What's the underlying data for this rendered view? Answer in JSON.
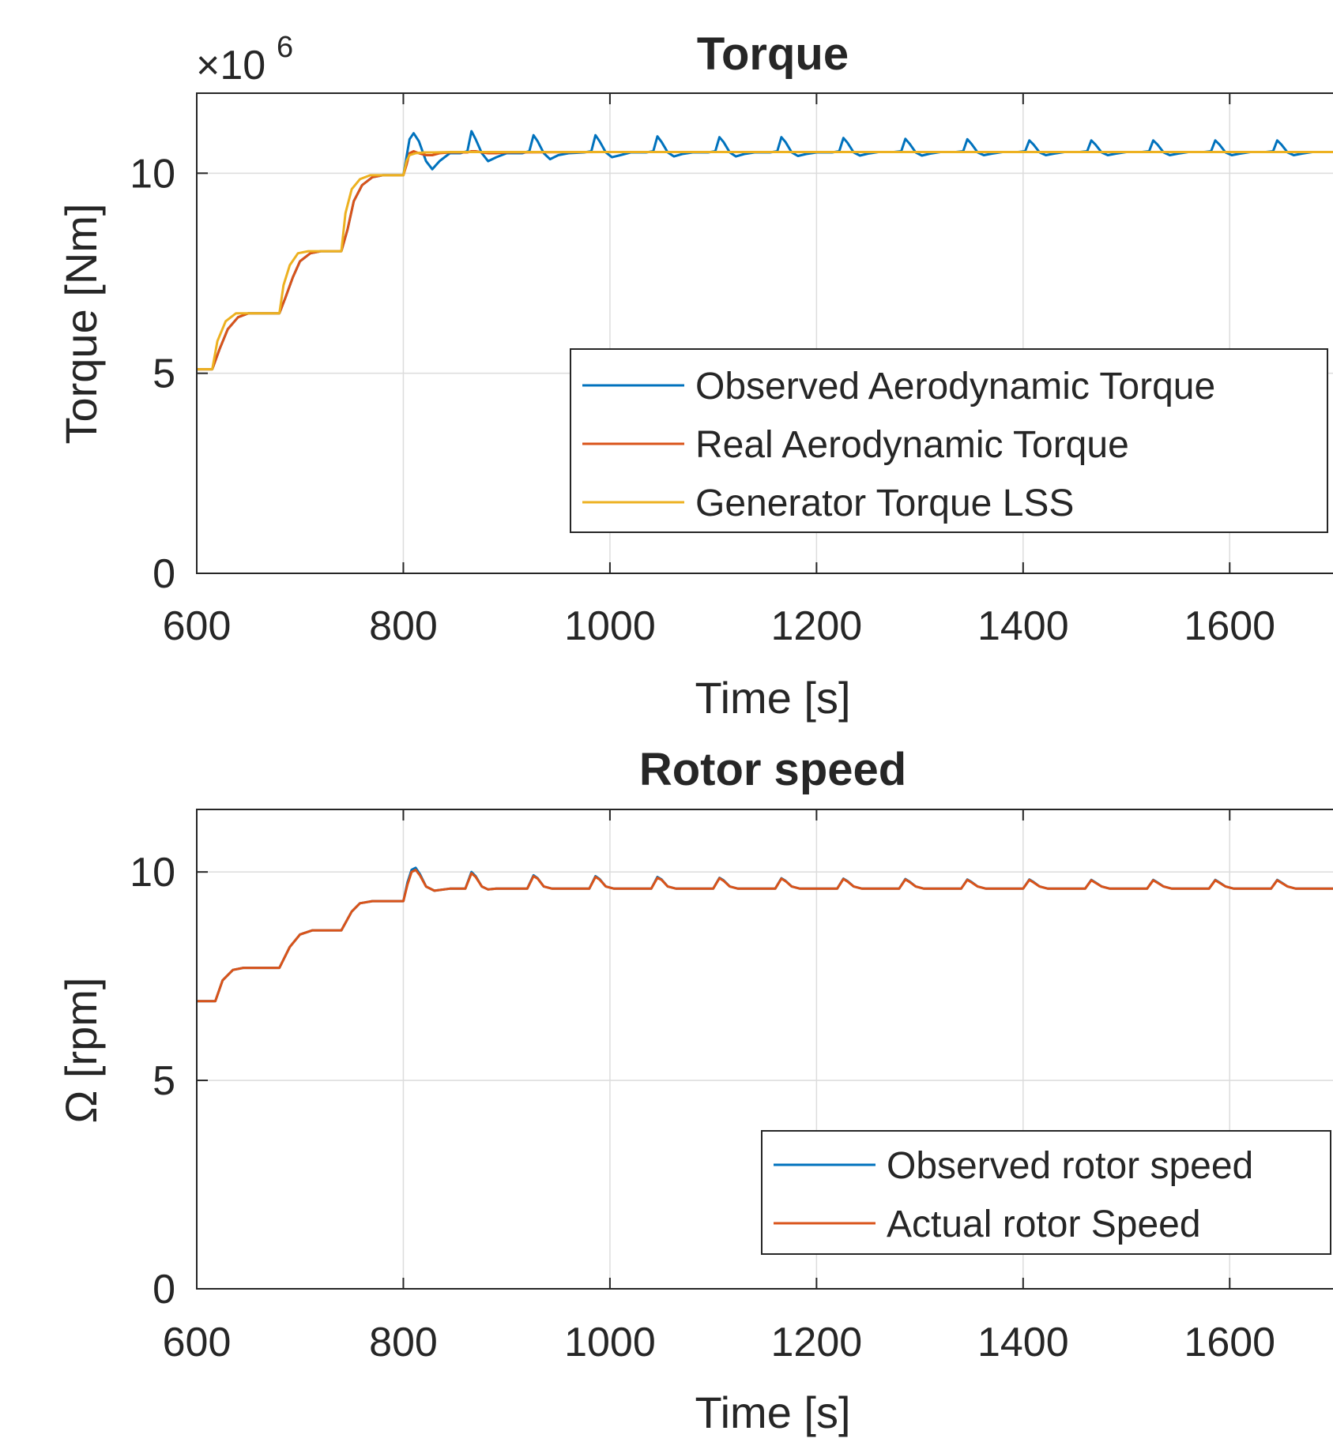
{
  "chart_data": [
    {
      "type": "line",
      "title": "Torque",
      "xlabel": "Time [s]",
      "ylabel": "Torque [Nm]",
      "y_exponent_label": "×10",
      "y_exponent_power": "6",
      "xlim": [
        600,
        1700
      ],
      "ylim": [
        0,
        12
      ],
      "xticks": [
        600,
        800,
        1000,
        1200,
        1400,
        1600
      ],
      "xtick_labels": [
        "600",
        "800",
        "1000",
        "1200",
        "1400",
        "1600"
      ],
      "yticks": [
        0,
        5,
        10
      ],
      "ytick_labels": [
        "0",
        "5",
        "10"
      ],
      "grid": true,
      "legend_position": "center-right",
      "series": [
        {
          "name": "Observed Aerodynamic Torque",
          "color": "#0072BD",
          "x": [
            600,
            615,
            622,
            630,
            640,
            650,
            660,
            672,
            680,
            686,
            693,
            700,
            710,
            720,
            732,
            740,
            746,
            752,
            760,
            770,
            780,
            792,
            800,
            803,
            806,
            810,
            815,
            822,
            828,
            835,
            845,
            855,
            862,
            866,
            870,
            876,
            882,
            890,
            900,
            915,
            922,
            926,
            930,
            936,
            942,
            950,
            960,
            975,
            982,
            986,
            990,
            996,
            1002,
            1010,
            1020,
            1035,
            1042,
            1046,
            1050,
            1056,
            1062,
            1070,
            1080,
            1095,
            1102,
            1106,
            1110,
            1116,
            1122,
            1130,
            1140,
            1155,
            1162,
            1166,
            1170,
            1176,
            1182,
            1190,
            1200,
            1215,
            1222,
            1226,
            1230,
            1236,
            1242,
            1250,
            1260,
            1275,
            1282,
            1286,
            1290,
            1296,
            1302,
            1310,
            1320,
            1335,
            1342,
            1346,
            1350,
            1356,
            1362,
            1370,
            1380,
            1395,
            1402,
            1406,
            1410,
            1416,
            1422,
            1430,
            1440,
            1455,
            1462,
            1466,
            1470,
            1476,
            1482,
            1490,
            1500,
            1515,
            1522,
            1526,
            1530,
            1536,
            1542,
            1550,
            1560,
            1575,
            1582,
            1586,
            1590,
            1596,
            1602,
            1610,
            1620,
            1635,
            1642,
            1646,
            1650,
            1656,
            1662,
            1670,
            1680,
            1700
          ],
          "y": [
            5.1,
            5.1,
            5.6,
            6.1,
            6.4,
            6.5,
            6.5,
            6.5,
            6.5,
            6.9,
            7.4,
            7.8,
            8.0,
            8.05,
            8.05,
            8.05,
            8.6,
            9.3,
            9.7,
            9.9,
            9.95,
            9.95,
            9.95,
            10.4,
            10.85,
            11.0,
            10.8,
            10.3,
            10.1,
            10.3,
            10.5,
            10.5,
            10.55,
            11.05,
            10.85,
            10.5,
            10.3,
            10.4,
            10.5,
            10.5,
            10.55,
            10.95,
            10.8,
            10.5,
            10.35,
            10.45,
            10.5,
            10.52,
            10.55,
            10.95,
            10.8,
            10.52,
            10.4,
            10.45,
            10.52,
            10.52,
            10.55,
            10.92,
            10.78,
            10.52,
            10.42,
            10.48,
            10.52,
            10.52,
            10.55,
            10.9,
            10.78,
            10.52,
            10.42,
            10.48,
            10.52,
            10.52,
            10.55,
            10.9,
            10.78,
            10.52,
            10.43,
            10.48,
            10.52,
            10.52,
            10.55,
            10.88,
            10.76,
            10.52,
            10.44,
            10.49,
            10.53,
            10.53,
            10.55,
            10.86,
            10.74,
            10.52,
            10.44,
            10.49,
            10.53,
            10.53,
            10.55,
            10.85,
            10.73,
            10.52,
            10.45,
            10.49,
            10.53,
            10.53,
            10.55,
            10.82,
            10.72,
            10.52,
            10.45,
            10.49,
            10.53,
            10.53,
            10.55,
            10.82,
            10.72,
            10.52,
            10.45,
            10.49,
            10.53,
            10.53,
            10.55,
            10.82,
            10.72,
            10.52,
            10.45,
            10.49,
            10.53,
            10.53,
            10.55,
            10.82,
            10.72,
            10.52,
            10.45,
            10.49,
            10.53,
            10.53,
            10.55,
            10.82,
            10.72,
            10.52,
            10.45,
            10.49,
            10.53,
            10.53
          ]
        },
        {
          "name": "Real Aerodynamic Torque",
          "color": "#D95319",
          "x": [
            600,
            615,
            622,
            630,
            640,
            650,
            660,
            672,
            680,
            686,
            693,
            700,
            710,
            720,
            732,
            740,
            746,
            752,
            760,
            770,
            780,
            792,
            800,
            803,
            806,
            810,
            815,
            822,
            828,
            835,
            845,
            855,
            862,
            866,
            870,
            876,
            882,
            890,
            900,
            1000,
            1100,
            1200,
            1300,
            1400,
            1500,
            1600,
            1700
          ],
          "y": [
            5.1,
            5.1,
            5.6,
            6.1,
            6.4,
            6.5,
            6.5,
            6.5,
            6.5,
            6.9,
            7.4,
            7.8,
            8.0,
            8.05,
            8.05,
            8.05,
            8.6,
            9.3,
            9.7,
            9.9,
            9.95,
            9.95,
            9.95,
            10.2,
            10.5,
            10.55,
            10.5,
            10.45,
            10.45,
            10.5,
            10.52,
            10.52,
            10.52,
            10.55,
            10.55,
            10.52,
            10.5,
            10.5,
            10.52,
            10.53,
            10.53,
            10.53,
            10.53,
            10.53,
            10.53,
            10.53,
            10.53
          ]
        },
        {
          "name": "Generator Torque LSS",
          "color": "#EDB120",
          "x": [
            600,
            615,
            620,
            628,
            638,
            650,
            660,
            672,
            680,
            684,
            690,
            698,
            708,
            720,
            732,
            740,
            744,
            750,
            758,
            768,
            780,
            792,
            800,
            803,
            806,
            812,
            820,
            830,
            845,
            860,
            880,
            900,
            1000,
            1100,
            1200,
            1300,
            1400,
            1500,
            1600,
            1700
          ],
          "y": [
            5.1,
            5.1,
            5.8,
            6.3,
            6.5,
            6.5,
            6.5,
            6.5,
            6.5,
            7.2,
            7.7,
            8.0,
            8.05,
            8.05,
            8.05,
            8.05,
            9.0,
            9.6,
            9.85,
            9.95,
            9.95,
            9.95,
            9.95,
            10.3,
            10.45,
            10.5,
            10.52,
            10.52,
            10.53,
            10.53,
            10.53,
            10.53,
            10.53,
            10.53,
            10.53,
            10.53,
            10.53,
            10.53,
            10.53,
            10.53
          ]
        }
      ]
    },
    {
      "type": "line",
      "title": "Rotor speed",
      "xlabel": "Time [s]",
      "ylabel": "Ω [rpm]",
      "xlim": [
        600,
        1700
      ],
      "ylim": [
        0,
        11.5
      ],
      "xticks": [
        600,
        800,
        1000,
        1200,
        1400,
        1600
      ],
      "xtick_labels": [
        "600",
        "800",
        "1000",
        "1200",
        "1400",
        "1600"
      ],
      "yticks": [
        0,
        5,
        10
      ],
      "ytick_labels": [
        "0",
        "5",
        "10"
      ],
      "grid": true,
      "legend_position": "bottom-right",
      "series": [
        {
          "name": "Observed rotor speed",
          "color": "#0072BD",
          "x": [
            600,
            618,
            625,
            635,
            645,
            660,
            680,
            690,
            700,
            712,
            725,
            740,
            750,
            758,
            770,
            785,
            800,
            804,
            808,
            812,
            816,
            822,
            830,
            845,
            860,
            866,
            870,
            876,
            882,
            890,
            920,
            926,
            930,
            936,
            944,
            980,
            986,
            990,
            996,
            1004,
            1040,
            1046,
            1050,
            1056,
            1064,
            1100,
            1106,
            1110,
            1116,
            1124,
            1160,
            1166,
            1170,
            1176,
            1184,
            1220,
            1226,
            1230,
            1236,
            1244,
            1280,
            1286,
            1290,
            1296,
            1304,
            1340,
            1346,
            1350,
            1356,
            1364,
            1400,
            1406,
            1410,
            1416,
            1424,
            1460,
            1466,
            1470,
            1476,
            1484,
            1520,
            1526,
            1530,
            1536,
            1544,
            1580,
            1586,
            1590,
            1596,
            1604,
            1640,
            1646,
            1650,
            1656,
            1664,
            1700
          ],
          "y": [
            6.9,
            6.9,
            7.4,
            7.65,
            7.7,
            7.7,
            7.7,
            8.2,
            8.5,
            8.6,
            8.6,
            8.6,
            9.05,
            9.25,
            9.3,
            9.3,
            9.3,
            9.75,
            10.05,
            10.1,
            9.95,
            9.65,
            9.55,
            9.6,
            9.6,
            10.0,
            9.9,
            9.65,
            9.58,
            9.6,
            9.6,
            9.92,
            9.85,
            9.65,
            9.6,
            9.6,
            9.9,
            9.83,
            9.65,
            9.6,
            9.6,
            9.88,
            9.82,
            9.65,
            9.6,
            9.6,
            9.86,
            9.8,
            9.65,
            9.6,
            9.6,
            9.85,
            9.79,
            9.65,
            9.6,
            9.6,
            9.84,
            9.78,
            9.65,
            9.6,
            9.6,
            9.83,
            9.77,
            9.65,
            9.6,
            9.6,
            9.82,
            9.76,
            9.65,
            9.6,
            9.6,
            9.82,
            9.76,
            9.65,
            9.6,
            9.6,
            9.81,
            9.75,
            9.65,
            9.6,
            9.6,
            9.81,
            9.75,
            9.65,
            9.6,
            9.6,
            9.81,
            9.75,
            9.65,
            9.6,
            9.6,
            9.81,
            9.75,
            9.65,
            9.6,
            9.6
          ]
        },
        {
          "name": "Actual rotor Speed",
          "color": "#D95319",
          "x": [
            600,
            618,
            625,
            635,
            645,
            660,
            680,
            690,
            700,
            712,
            725,
            740,
            750,
            758,
            770,
            785,
            800,
            804,
            808,
            812,
            816,
            822,
            830,
            845,
            860,
            866,
            870,
            876,
            882,
            890,
            920,
            926,
            930,
            936,
            944,
            980,
            986,
            990,
            996,
            1004,
            1040,
            1046,
            1050,
            1056,
            1064,
            1100,
            1106,
            1110,
            1116,
            1124,
            1160,
            1166,
            1170,
            1176,
            1184,
            1220,
            1226,
            1230,
            1236,
            1244,
            1280,
            1286,
            1290,
            1296,
            1304,
            1340,
            1346,
            1350,
            1356,
            1364,
            1400,
            1406,
            1410,
            1416,
            1424,
            1460,
            1466,
            1470,
            1476,
            1484,
            1520,
            1526,
            1530,
            1536,
            1544,
            1580,
            1586,
            1590,
            1596,
            1604,
            1640,
            1646,
            1650,
            1656,
            1664,
            1700
          ],
          "y": [
            6.9,
            6.9,
            7.4,
            7.65,
            7.7,
            7.7,
            7.7,
            8.2,
            8.5,
            8.6,
            8.6,
            8.6,
            9.05,
            9.25,
            9.3,
            9.3,
            9.3,
            9.7,
            10.0,
            10.05,
            9.92,
            9.65,
            9.55,
            9.6,
            9.6,
            9.97,
            9.88,
            9.65,
            9.58,
            9.6,
            9.6,
            9.9,
            9.84,
            9.65,
            9.6,
            9.6,
            9.88,
            9.82,
            9.65,
            9.6,
            9.6,
            9.86,
            9.81,
            9.65,
            9.6,
            9.6,
            9.85,
            9.79,
            9.65,
            9.6,
            9.6,
            9.84,
            9.78,
            9.65,
            9.6,
            9.6,
            9.83,
            9.77,
            9.65,
            9.6,
            9.6,
            9.82,
            9.76,
            9.65,
            9.6,
            9.6,
            9.81,
            9.75,
            9.65,
            9.6,
            9.6,
            9.81,
            9.75,
            9.65,
            9.6,
            9.6,
            9.8,
            9.74,
            9.65,
            9.6,
            9.6,
            9.8,
            9.74,
            9.65,
            9.6,
            9.6,
            9.8,
            9.74,
            9.65,
            9.6,
            9.6,
            9.8,
            9.74,
            9.65,
            9.6,
            9.6
          ]
        }
      ]
    }
  ]
}
